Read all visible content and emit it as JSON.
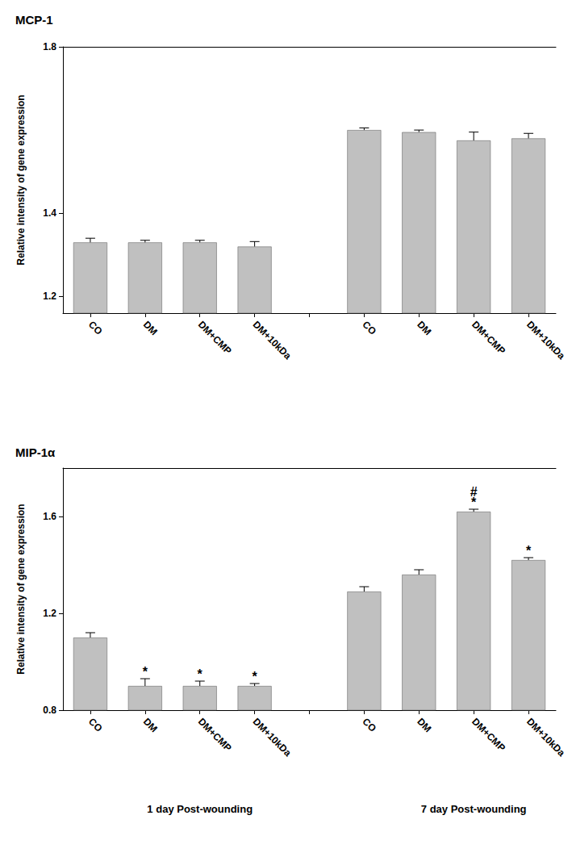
{
  "chart_data": [
    {
      "type": "bar",
      "title": "MCP-1",
      "y_label": "Relative intensity of gene expression",
      "categories": [
        "CO",
        "DM",
        "DM+CMP",
        "DM+10kDa",
        null,
        "CO",
        "DM",
        "DM+CMP",
        "DM+10kDa"
      ],
      "values": [
        1.33,
        1.33,
        1.33,
        1.32,
        null,
        1.6,
        1.595,
        1.575,
        1.58
      ],
      "errors": [
        0.01,
        0.005,
        0.005,
        0.012,
        null,
        0.005,
        0.005,
        0.02,
        0.012
      ],
      "color": "#c0c0c0",
      "ylim": [
        1.16,
        1.8
      ],
      "yticks": [
        1.2,
        1.4,
        1.8
      ],
      "grid": false
    },
    {
      "type": "bar",
      "title": "MIP-1α",
      "y_label": "Relative intensity of gene expression",
      "categories": [
        "CO",
        "DM",
        "DM+CMP",
        "DM+10kDa",
        null,
        "CO",
        "DM",
        "DM+CMP",
        "DM+10kDa"
      ],
      "values": [
        1.1,
        0.9,
        0.9,
        0.9,
        null,
        1.29,
        1.36,
        1.62,
        1.42
      ],
      "errors": [
        0.02,
        0.03,
        0.02,
        0.01,
        null,
        0.02,
        0.02,
        0.01,
        0.01
      ],
      "significance": [
        null,
        [
          "*"
        ],
        [
          "*"
        ],
        [
          "*"
        ],
        null,
        null,
        null,
        [
          "#",
          "*"
        ],
        [
          "*"
        ]
      ],
      "groups": [
        "1 day Post-wounding",
        "7 day Post-wounding"
      ],
      "color": "#c0c0c0",
      "ylim": [
        0.8,
        1.8
      ],
      "yticks": [
        0.8,
        1.2,
        1.6
      ],
      "grid": false
    }
  ]
}
